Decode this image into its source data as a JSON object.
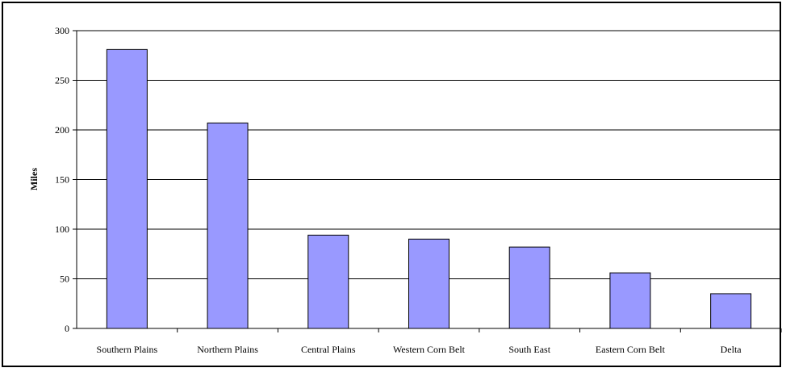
{
  "chart_data": {
    "type": "bar",
    "title": "",
    "xlabel": "",
    "ylabel": "Miles",
    "ylim": [
      0,
      300
    ],
    "yticks": [
      0,
      50,
      100,
      150,
      200,
      250,
      300
    ],
    "grid": true,
    "legend": "none",
    "bar_color": "#9999ff",
    "categories": [
      "Southern Plains",
      "Northern Plains",
      "Central Plains",
      "Western Corn Belt",
      "South East",
      "Eastern Corn Belt",
      "Delta"
    ],
    "values": [
      281,
      207,
      94,
      90,
      82,
      56,
      35
    ]
  }
}
